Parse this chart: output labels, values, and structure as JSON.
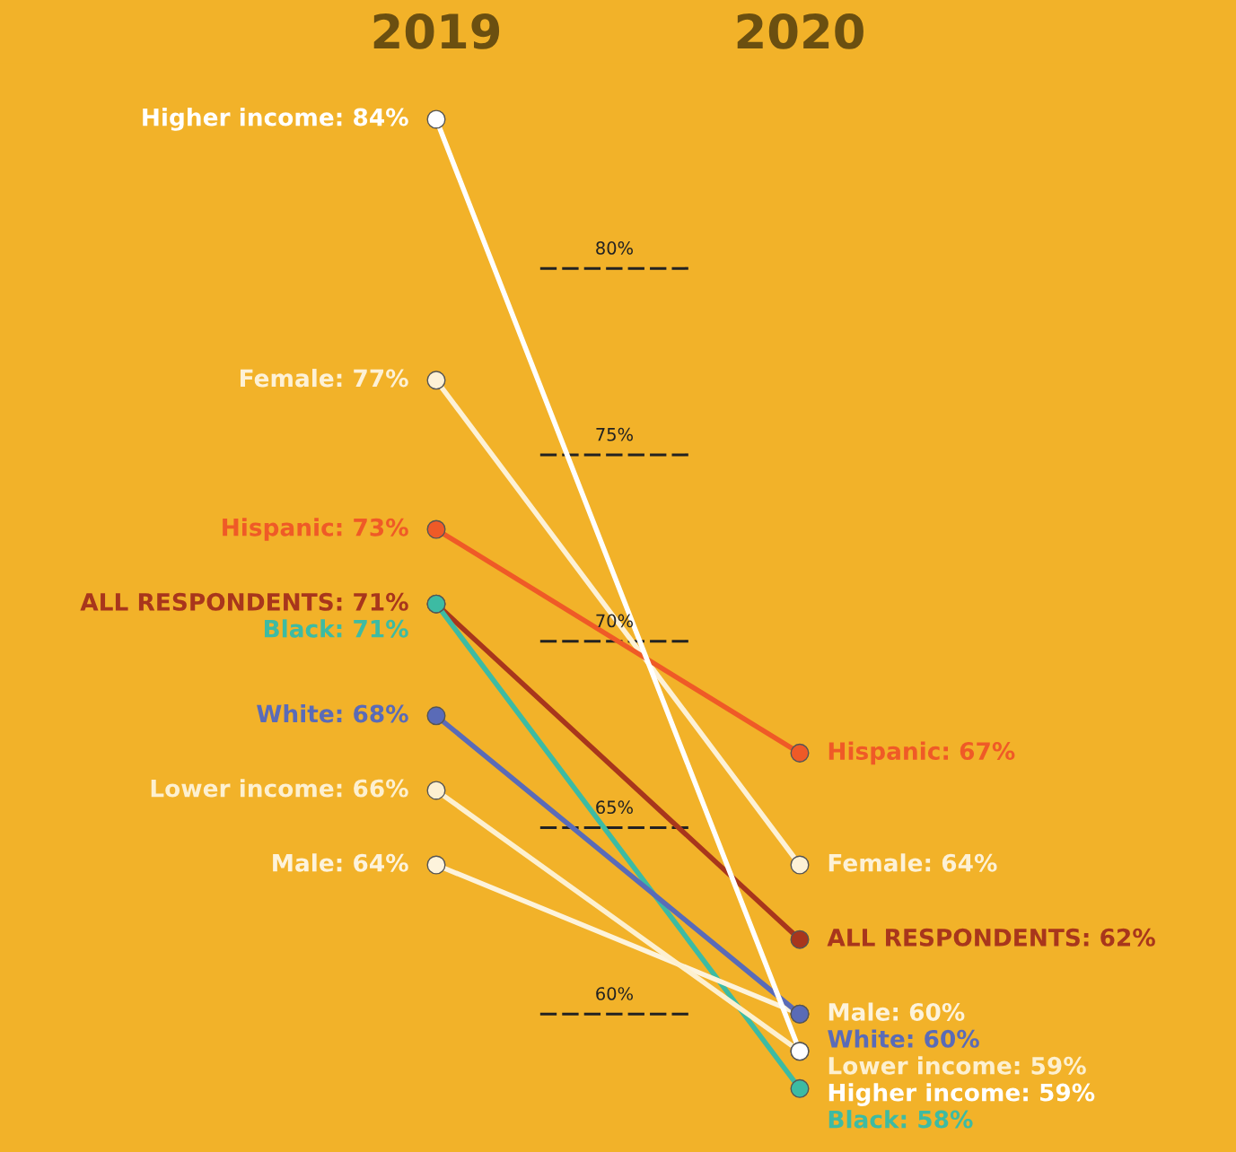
{
  "chart_data": {
    "type": "line",
    "categories": [
      "2019",
      "2020"
    ],
    "marker": "circle",
    "line_style": "solid",
    "legend": false,
    "grid": false,
    "tick_labels": "x",
    "series": [
      {
        "color": "#fdf1d6",
        "values": [
          77,
          64
        ],
        "value_labels": [
          "Female: 77%",
          "Female: 64%"
        ]
      },
      {
        "color": "#ef5a27",
        "values": [
          73,
          67
        ],
        "value_labels": [
          "Hispanic: 73%",
          "Hispanic: 67%"
        ]
      },
      {
        "color": "#a8361c",
        "values": [
          71,
          62
        ],
        "value_labels": [
          "ALL RESPONDENTS: 71%",
          "ALL RESPONDENTS: 62%"
        ]
      },
      {
        "color": "#3dbba3",
        "values": [
          71,
          58
        ],
        "value_labels": [
          "Black: 71%",
          "Black: 58%"
        ]
      },
      {
        "color": "#fdf3dc",
        "values": [
          64,
          60
        ],
        "value_labels": [
          "Male: 64%",
          "Male: 60%"
        ]
      },
      {
        "color": "#5a6bb7",
        "values": [
          68,
          60
        ],
        "value_labels": [
          "White: 68%",
          "White: 60%"
        ]
      },
      {
        "color": "#fdf0d0",
        "values": [
          66,
          59
        ],
        "value_labels": [
          "Lower income: 66%",
          "Lower income: 59%"
        ]
      },
      {
        "color": "#ffffff",
        "values": [
          84,
          59
        ],
        "value_labels": [
          "Higher income: 84%",
          "Higher income: 59%"
        ]
      }
    ],
    "ref_lines": [
      {
        "axis": "y",
        "value": 80,
        "label": "80%",
        "line_style": "dashed"
      },
      {
        "axis": "y",
        "value": 75,
        "label": "75%",
        "line_style": "dashed"
      },
      {
        "axis": "y",
        "value": 70,
        "label": "70%",
        "line_style": "dashed"
      },
      {
        "axis": "y",
        "value": 65,
        "label": "65%",
        "line_style": "dashed"
      },
      {
        "axis": "y",
        "value": 60,
        "label": "60%",
        "line_style": "dashed"
      }
    ]
  }
}
